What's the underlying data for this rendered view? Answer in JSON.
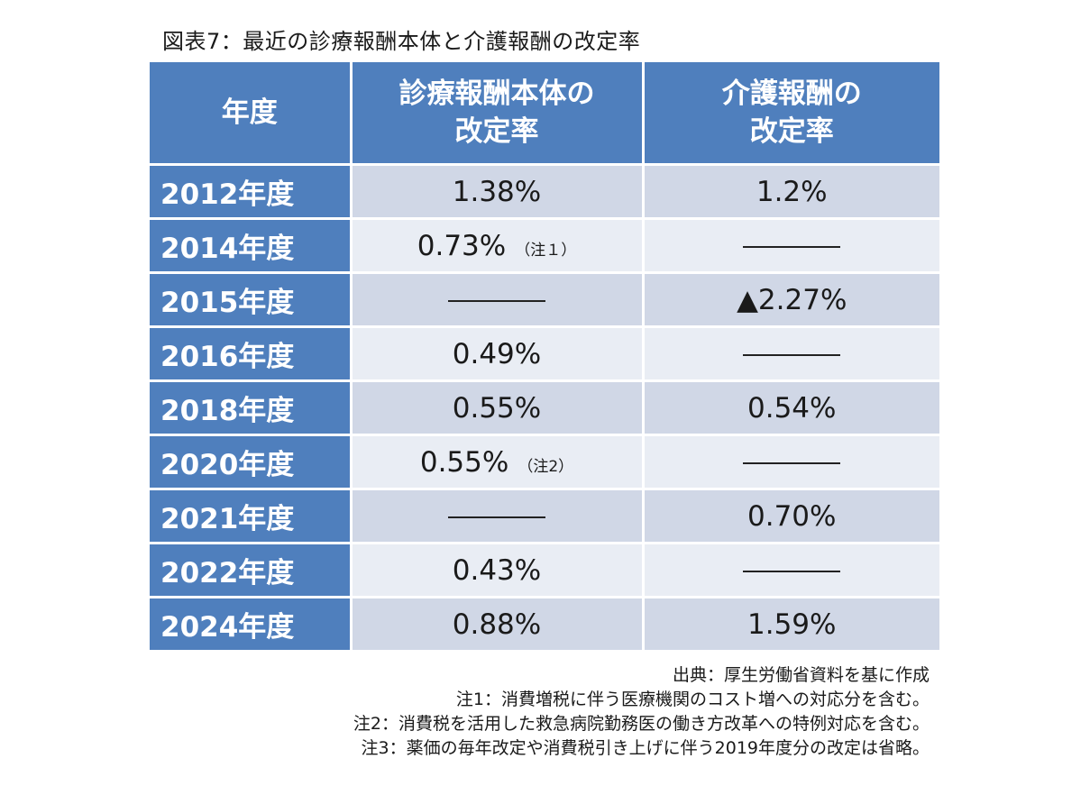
{
  "title": "図表7：最近の診療報酬本体と介護報酬の改定率",
  "table": {
    "headers": {
      "year": "年度",
      "medical_line1": "診療報酬本体の",
      "medical_line2": "改定率",
      "care_line1": "介護報酬の",
      "care_line2": "改定率"
    },
    "rows": [
      {
        "year": "2012年度",
        "medical": "1.38%",
        "medical_note": "",
        "care": "1.2%"
      },
      {
        "year": "2014年度",
        "medical": "0.73%",
        "medical_note": "（注１）",
        "care": "———"
      },
      {
        "year": "2015年度",
        "medical": "———",
        "medical_note": "",
        "care": "▲2.27%"
      },
      {
        "year": "2016年度",
        "medical": "0.49%",
        "medical_note": "",
        "care": "———"
      },
      {
        "year": "2018年度",
        "medical": "0.55%",
        "medical_note": "",
        "care": "0.54%"
      },
      {
        "year": "2020年度",
        "medical": "0.55%",
        "medical_note": "（注2）",
        "care": "———"
      },
      {
        "year": "2021年度",
        "medical": "———",
        "medical_note": "",
        "care": "0.70%"
      },
      {
        "year": "2022年度",
        "medical": "0.43%",
        "medical_note": "",
        "care": "———"
      },
      {
        "year": "2024年度",
        "medical": "0.88%",
        "medical_note": "",
        "care": "1.59%"
      }
    ]
  },
  "notes": {
    "source": "出典：厚生労働省資料を基に作成",
    "note1": "注1：消費増税に伴う医療機関のコスト増への対応分を含む。",
    "note2": "注2：消費税を活用した救急病院勤務医の働き方改革への特例対応を含む。",
    "note3": "注3：薬価の毎年改定や消費税引き上げに伴う2019年度分の改定は省略。"
  }
}
